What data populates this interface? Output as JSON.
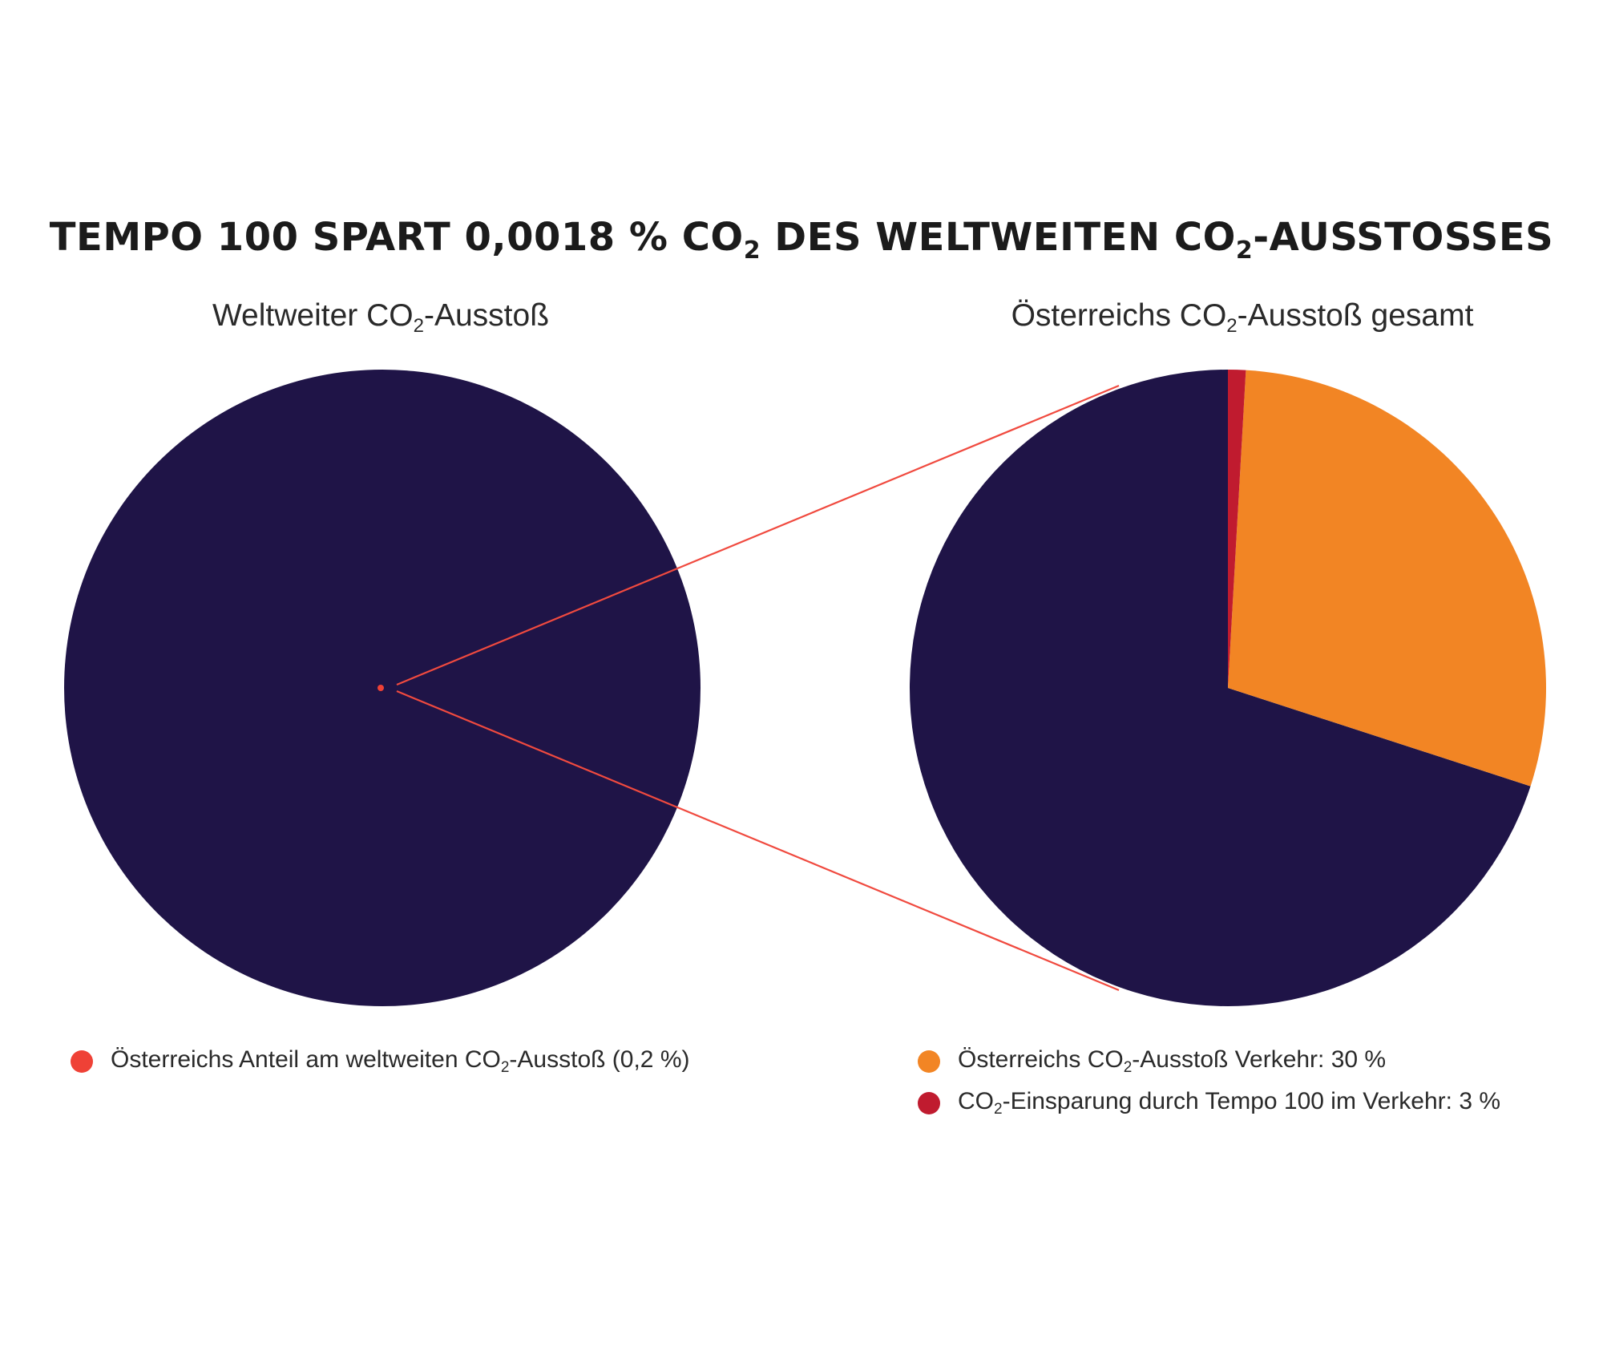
{
  "title": {
    "pre": "TEMPO 100 SPART 0,0018 % CO",
    "sub1": "2",
    "mid": " DES WELTWEITEN CO",
    "sub2": "2",
    "post": "-AUSSTOSSES"
  },
  "colors": {
    "dark": "#1f1447",
    "orange": "#f28524",
    "crimson": "#c01b2f",
    "red": "#ef4136",
    "connector": "#f04a3f"
  },
  "chart_data": [
    {
      "type": "pie",
      "title": {
        "pre": "Weltweiter CO",
        "sub": "2",
        "post": "-Ausstoß"
      },
      "slices": [
        {
          "label": "Österreichs Anteil am weltweiten CO2-Ausstoß (0,2 %)",
          "value": 0.2,
          "color": "#ef4136"
        },
        {
          "label": "",
          "value": 99.8,
          "color": "#1f1447"
        }
      ],
      "legend": [
        {
          "pre": "Österreichs Anteil am weltweiten CO",
          "sub": "2",
          "post": "-Ausstoß (0,2 %)",
          "color": "#ef4136"
        }
      ]
    },
    {
      "type": "pie",
      "title": {
        "pre": "Österreichs CO",
        "sub": "2",
        "post": "-Ausstoß gesamt"
      },
      "slices": [
        {
          "label": "CO2-Einsparung durch Tempo 100 im Verkehr: 3 %",
          "value": 0.9,
          "color": "#c01b2f"
        },
        {
          "label": "Österreichs CO2-Ausstoß Verkehr: 30 %",
          "value": 29.1,
          "color": "#f28524"
        },
        {
          "label": "",
          "value": 70,
          "color": "#1f1447"
        }
      ],
      "legend": [
        {
          "pre": "Österreichs CO",
          "sub": "2",
          "post": "-Ausstoß Verkehr: 30 %",
          "color": "#f28524"
        },
        {
          "pre": "CO",
          "sub": "2",
          "post": "-Einsparung durch Tempo 100 im Verkehr: 3 %",
          "color": "#c01b2f"
        }
      ]
    }
  ]
}
